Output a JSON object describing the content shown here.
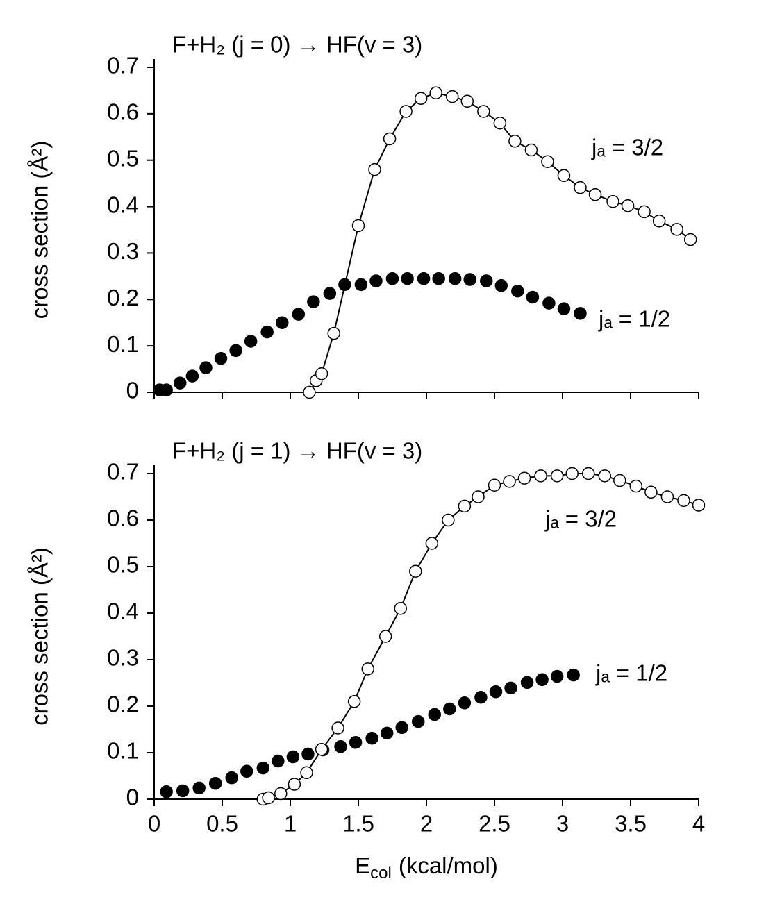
{
  "chart_data": [
    {
      "type": "scatter",
      "title": "F+H₂ (j = 0) → HF(v = 3)",
      "y_label": "cross section (Å²)",
      "xlim": [
        0,
        4
      ],
      "xticks": [
        0,
        0.5,
        1,
        1.5,
        2,
        2.5,
        3,
        3.5,
        4
      ],
      "show_xtick_labels": false,
      "ylim": [
        0,
        0.7
      ],
      "yticks": [
        0,
        0.1,
        0.2,
        0.3,
        0.4,
        0.5,
        0.6,
        0.7
      ],
      "series": [
        {
          "name": "jₐ = 1/2",
          "color": "#000000",
          "line": false,
          "x": [
            0.04,
            0.09,
            0.19,
            0.28,
            0.38,
            0.49,
            0.6,
            0.71,
            0.83,
            0.94,
            1.06,
            1.17,
            1.29,
            1.4,
            1.52,
            1.63,
            1.75,
            1.86,
            1.98,
            2.09,
            2.21,
            2.32,
            2.44,
            2.55,
            2.67,
            2.78,
            2.9,
            3.01,
            3.13
          ],
          "values": [
            0.005,
            0.005,
            0.02,
            0.035,
            0.053,
            0.073,
            0.09,
            0.11,
            0.13,
            0.15,
            0.168,
            0.195,
            0.213,
            0.232,
            0.232,
            0.24,
            0.245,
            0.245,
            0.245,
            0.245,
            0.245,
            0.243,
            0.24,
            0.23,
            0.218,
            0.205,
            0.192,
            0.18,
            0.17
          ]
        },
        {
          "name": "jₐ = 3/2",
          "color": "#ffffff",
          "line": true,
          "x": [
            1.14,
            1.19,
            1.23,
            1.32,
            1.5,
            1.62,
            1.73,
            1.85,
            1.96,
            2.07,
            2.19,
            2.3,
            2.42,
            2.54,
            2.65,
            2.77,
            2.89,
            3.01,
            3.13,
            3.24,
            3.37,
            3.48,
            3.6,
            3.71,
            3.84,
            3.94
          ],
          "values": [
            0,
            0.025,
            0.04,
            0.127,
            0.359,
            0.48,
            0.546,
            0.605,
            0.633,
            0.645,
            0.637,
            0.627,
            0.605,
            0.58,
            0.541,
            0.522,
            0.497,
            0.467,
            0.441,
            0.426,
            0.411,
            0.402,
            0.389,
            0.369,
            0.351,
            0.329
          ]
        }
      ]
    },
    {
      "type": "scatter",
      "title": "F+H₂ (j = 1) → HF(v = 3)",
      "y_label": "cross section (Å²)",
      "x_label": "E",
      "x_label_subscript": "col",
      "x_label_unit": "(kcal/mol)",
      "xlim": [
        0,
        4
      ],
      "xticks": [
        0,
        0.5,
        1,
        1.5,
        2,
        2.5,
        3,
        3.5,
        4
      ],
      "show_xtick_labels": true,
      "ylim": [
        0,
        0.7
      ],
      "yticks": [
        0,
        0.1,
        0.2,
        0.3,
        0.4,
        0.5,
        0.6,
        0.7
      ],
      "series": [
        {
          "name": "jₐ = 1/2",
          "color": "#000000",
          "line": false,
          "x": [
            0.09,
            0.21,
            0.33,
            0.45,
            0.57,
            0.68,
            0.8,
            0.91,
            1.02,
            1.13,
            1.24,
            1.37,
            1.48,
            1.6,
            1.71,
            1.82,
            1.94,
            2.06,
            2.17,
            2.28,
            2.4,
            2.51,
            2.62,
            2.74,
            2.85,
            2.96,
            3.08
          ],
          "values": [
            0.016,
            0.018,
            0.024,
            0.034,
            0.046,
            0.06,
            0.067,
            0.082,
            0.091,
            0.097,
            0.106,
            0.113,
            0.122,
            0.131,
            0.142,
            0.154,
            0.167,
            0.182,
            0.194,
            0.207,
            0.219,
            0.231,
            0.239,
            0.251,
            0.257,
            0.264,
            0.267
          ]
        },
        {
          "name": "jₐ = 3/2",
          "color": "#ffffff",
          "line": true,
          "x": [
            0.8,
            0.84,
            0.93,
            1.03,
            1.12,
            1.23,
            1.35,
            1.47,
            1.57,
            1.7,
            1.81,
            1.92,
            2.04,
            2.16,
            2.28,
            2.38,
            2.5,
            2.61,
            2.72,
            2.84,
            2.96,
            3.07,
            3.19,
            3.31,
            3.42,
            3.54,
            3.65,
            3.77,
            3.89,
            4.0
          ],
          "values": [
            0,
            0.003,
            0.012,
            0.032,
            0.057,
            0.107,
            0.153,
            0.21,
            0.28,
            0.35,
            0.41,
            0.49,
            0.55,
            0.6,
            0.63,
            0.65,
            0.675,
            0.683,
            0.69,
            0.695,
            0.695,
            0.7,
            0.7,
            0.695,
            0.685,
            0.673,
            0.66,
            0.65,
            0.642,
            0.632
          ]
        }
      ]
    }
  ]
}
